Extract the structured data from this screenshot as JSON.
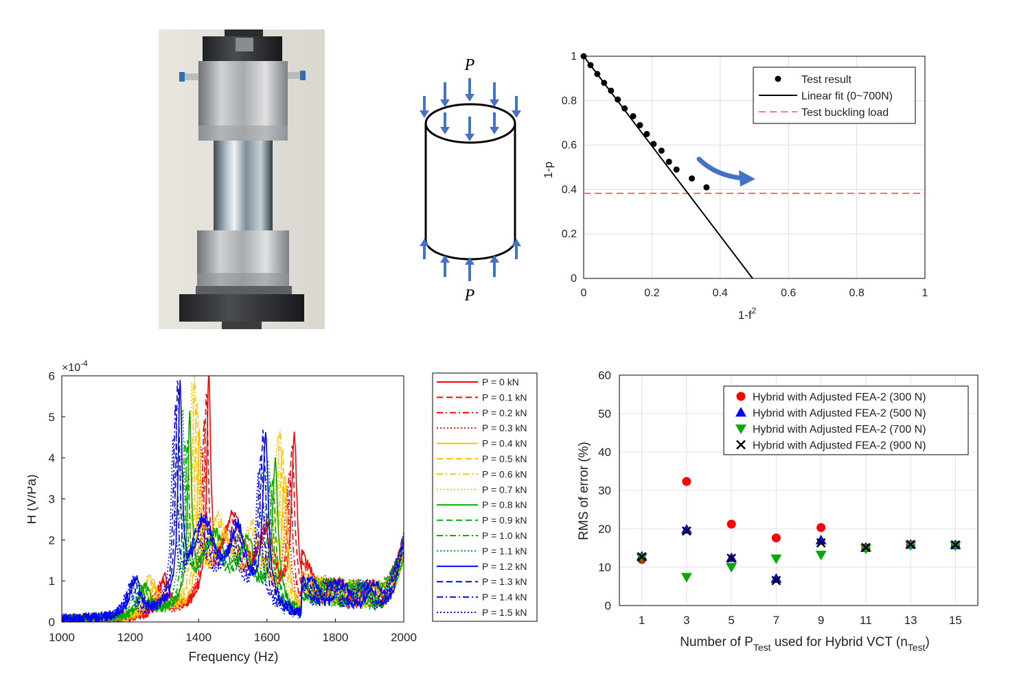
{
  "schematic": {
    "load_top": "P",
    "load_bottom": "P",
    "arrow_color": "#4472C4"
  },
  "chart_data": [
    {
      "id": "vct",
      "type": "scatter",
      "xlabel": "1-f",
      "xlabel_sup": "2",
      "ylabel": "1-p",
      "xlim": [
        0,
        1
      ],
      "ylim": [
        0,
        1
      ],
      "xticks": [
        "0",
        "0.2",
        "0.4",
        "0.6",
        "0.8",
        "1"
      ],
      "yticks": [
        "0",
        "0.2",
        "0.4",
        "0.6",
        "0.8",
        "1"
      ],
      "grid": true,
      "legend_position": "top-right",
      "series": [
        {
          "name": "Test result",
          "kind": "points",
          "color": "#000000",
          "x": [
            0.0,
            0.02,
            0.04,
            0.06,
            0.08,
            0.1,
            0.12,
            0.145,
            0.165,
            0.185,
            0.205,
            0.228,
            0.25,
            0.272,
            0.317,
            0.36
          ],
          "y": [
            1.0,
            0.96,
            0.92,
            0.88,
            0.845,
            0.805,
            0.765,
            0.73,
            0.69,
            0.65,
            0.605,
            0.575,
            0.525,
            0.49,
            0.45,
            0.41
          ]
        },
        {
          "name": "Linear fit (0~700N)",
          "kind": "line",
          "color": "#000000",
          "x": [
            0.0,
            0.495
          ],
          "y": [
            1.0,
            0.0
          ]
        },
        {
          "name": "Test buckling load",
          "kind": "hline-dashed",
          "color": "#FF4D4D",
          "y": 0.383
        }
      ],
      "annotation_arrow_color": "#4472C4"
    },
    {
      "id": "frf",
      "type": "line",
      "xlabel": "Frequency (Hz)",
      "ylabel": "H (V/Pa)",
      "exponent_label": "×10",
      "exponent_power": "-4",
      "xlim": [
        1000,
        2000
      ],
      "ylim": [
        0,
        6
      ],
      "xticks": [
        "1000",
        "1200",
        "1400",
        "1600",
        "1800",
        "2000"
      ],
      "yticks": [
        "0",
        "1",
        "2",
        "3",
        "4",
        "5",
        "6"
      ],
      "grid": false,
      "legend_position": "outside-right",
      "base_peaks": [
        {
          "f": 1300,
          "a": 0.9,
          "w": 18
        },
        {
          "f": 1430,
          "a": 5.2,
          "w": 7
        },
        {
          "f": 1500,
          "a": 2.0,
          "w": 40
        },
        {
          "f": 1600,
          "a": 1.6,
          "w": 25
        },
        {
          "f": 1680,
          "a": 4.1,
          "w": 10
        }
      ],
      "series": [
        {
          "name": "P = 0 kN",
          "color": "#FF0000",
          "dash": "solid",
          "shift": 0
        },
        {
          "name": "P = 0.1 kN",
          "color": "#FF0000",
          "dash": "dash",
          "shift": -7
        },
        {
          "name": "P = 0.2 kN",
          "color": "#FF0000",
          "dash": "dashdot",
          "shift": -14
        },
        {
          "name": "P = 0.3 kN",
          "color": "#FF0000",
          "dash": "dot",
          "shift": -21
        },
        {
          "name": "P = 0.4 kN",
          "color": "#FFC000",
          "dash": "solid",
          "shift": -28
        },
        {
          "name": "P = 0.5 kN",
          "color": "#FFC000",
          "dash": "dash",
          "shift": -35
        },
        {
          "name": "P = 0.6 kN",
          "color": "#FFC000",
          "dash": "dashdot",
          "shift": -42
        },
        {
          "name": "P = 0.7 kN",
          "color": "#FFC000",
          "dash": "dot",
          "shift": -49
        },
        {
          "name": "P = 0.8 kN",
          "color": "#00AA00",
          "dash": "solid",
          "shift": -56
        },
        {
          "name": "P = 0.9 kN",
          "color": "#00AA00",
          "dash": "dash",
          "shift": -63
        },
        {
          "name": "P = 1.0 kN",
          "color": "#00AA00",
          "dash": "dashdot",
          "shift": -70
        },
        {
          "name": "P = 1.1 kN",
          "color": "#00AA00",
          "dash": "dot",
          "shift": -77
        },
        {
          "name": "P = 1.2 kN",
          "color": "#0000FF",
          "dash": "solid",
          "shift": -84
        },
        {
          "name": "P = 1.3 kN",
          "color": "#0000FF",
          "dash": "dash",
          "shift": -91
        },
        {
          "name": "P = 1.4 kN",
          "color": "#0000FF",
          "dash": "dashdot",
          "shift": -98
        },
        {
          "name": "P = 1.5 kN",
          "color": "#0000FF",
          "dash": "dot",
          "shift": -105
        }
      ]
    },
    {
      "id": "rms",
      "type": "scatter",
      "xlabel_pre": "Number of P",
      "xlabel_sub1": "Test",
      "xlabel_mid": " used for Hybrid VCT (n",
      "xlabel_sub2": "Test",
      "xlabel_post": ")",
      "ylabel": "RMS of error (%)",
      "xlim": [
        0,
        16
      ],
      "ylim": [
        0,
        60
      ],
      "xticks": [
        "1",
        "3",
        "5",
        "7",
        "9",
        "11",
        "13",
        "15"
      ],
      "yticks": [
        "0",
        "10",
        "20",
        "30",
        "40",
        "50",
        "60"
      ],
      "grid": true,
      "legend_position": "top-right",
      "series": [
        {
          "name": "Hybrid with Adjusted FEA-2 (300 N)",
          "marker": "circle",
          "color": "#FF0000",
          "x": [
            1,
            3,
            5,
            7,
            9,
            11,
            13,
            15
          ],
          "y": [
            12.0,
            32.3,
            21.2,
            17.6,
            20.3,
            15.0,
            15.8,
            15.7
          ]
        },
        {
          "name": "Hybrid with Adjusted FEA-2 (500 N)",
          "marker": "triangle-up",
          "color": "#0000FF",
          "x": [
            1,
            3,
            5,
            7,
            9,
            11,
            13,
            15
          ],
          "y": [
            12.8,
            19.8,
            12.4,
            7.0,
            17.0,
            15.1,
            15.9,
            15.8
          ]
        },
        {
          "name": "Hybrid with Adjusted FEA-2 (700 N)",
          "marker": "triangle-down",
          "color": "#00AA00",
          "x": [
            1,
            3,
            5,
            7,
            9,
            11,
            13,
            15
          ],
          "y": [
            12.5,
            7.4,
            10.0,
            12.2,
            13.2,
            14.8,
            15.7,
            15.6
          ]
        },
        {
          "name": "Hybrid with Adjusted FEA-2 (900 N)",
          "marker": "x",
          "color": "#000000",
          "x": [
            1,
            3,
            5,
            7,
            9,
            11,
            13,
            15
          ],
          "y": [
            12.7,
            19.4,
            12.3,
            6.5,
            16.3,
            15.1,
            15.9,
            15.8
          ]
        }
      ]
    }
  ]
}
